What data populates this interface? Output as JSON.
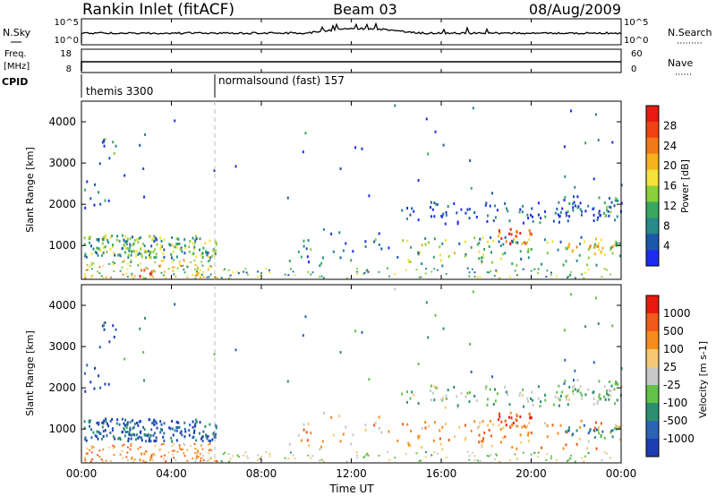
{
  "header": {
    "site": "Rankin Inlet (fitACF)",
    "beam": "Beam 03",
    "date": "08/Aug/2009"
  },
  "nsky_panel": {
    "left_label": "N.Sky",
    "right_label": "N.Search",
    "left_ticks": [
      "10^5",
      "10^0"
    ],
    "right_ticks": [
      "10^5",
      "10^0"
    ]
  },
  "freq_panel": {
    "left_label_1": "Freq.",
    "left_label_2": "[MHz]",
    "right_label": "Nave",
    "left_ticks": [
      "18",
      "8"
    ],
    "right_ticks": [
      "60",
      "0"
    ]
  },
  "cpid_panel": {
    "label": "CPID",
    "programs": [
      {
        "name": "themis 3300",
        "start_hour": 0
      },
      {
        "name": "normalsound (fast) 157",
        "start_hour": 6
      }
    ]
  },
  "chart_data": [
    {
      "type": "heatmap",
      "quantity": "Power",
      "xlabel": "",
      "ylabel": "Slant Range [km]",
      "x_range": [
        0,
        24
      ],
      "y_range": [
        180,
        4500
      ],
      "y_ticks": [
        1000,
        2000,
        3000,
        4000
      ],
      "colorbar": {
        "label": "Power [dB]",
        "ticks": [
          "4",
          "8",
          "12",
          "16",
          "20",
          "24",
          "28"
        ],
        "colors": [
          "#1c2cf0",
          "#1d58a8",
          "#2a8a8a",
          "#3aa860",
          "#8ccf3c",
          "#f2e23a",
          "#f5b21f",
          "#f07a1a",
          "#ef4316",
          "#e81a12"
        ]
      }
    },
    {
      "type": "heatmap",
      "quantity": "Velocity",
      "xlabel": "Time UT",
      "ylabel": "Slant Range [km]",
      "x_range": [
        0,
        24
      ],
      "x_tick_labels": [
        "00:00",
        "04:00",
        "08:00",
        "12:00",
        "16:00",
        "20:00",
        "00:00"
      ],
      "y_range": [
        180,
        4500
      ],
      "y_ticks": [
        1000,
        2000,
        3000,
        4000
      ],
      "colorbar": {
        "label": "Velocity [m s-1]",
        "ticks": [
          "1000",
          "500",
          "100",
          "25",
          "-25",
          "-100",
          "-500",
          "-1000"
        ],
        "colors": [
          "#1b3fb0",
          "#2c64b4",
          "#2d8f70",
          "#62c24a",
          "#c8c8c8",
          "#f7c873",
          "#f58c1c",
          "#f05a1a",
          "#e81a10"
        ]
      }
    }
  ]
}
